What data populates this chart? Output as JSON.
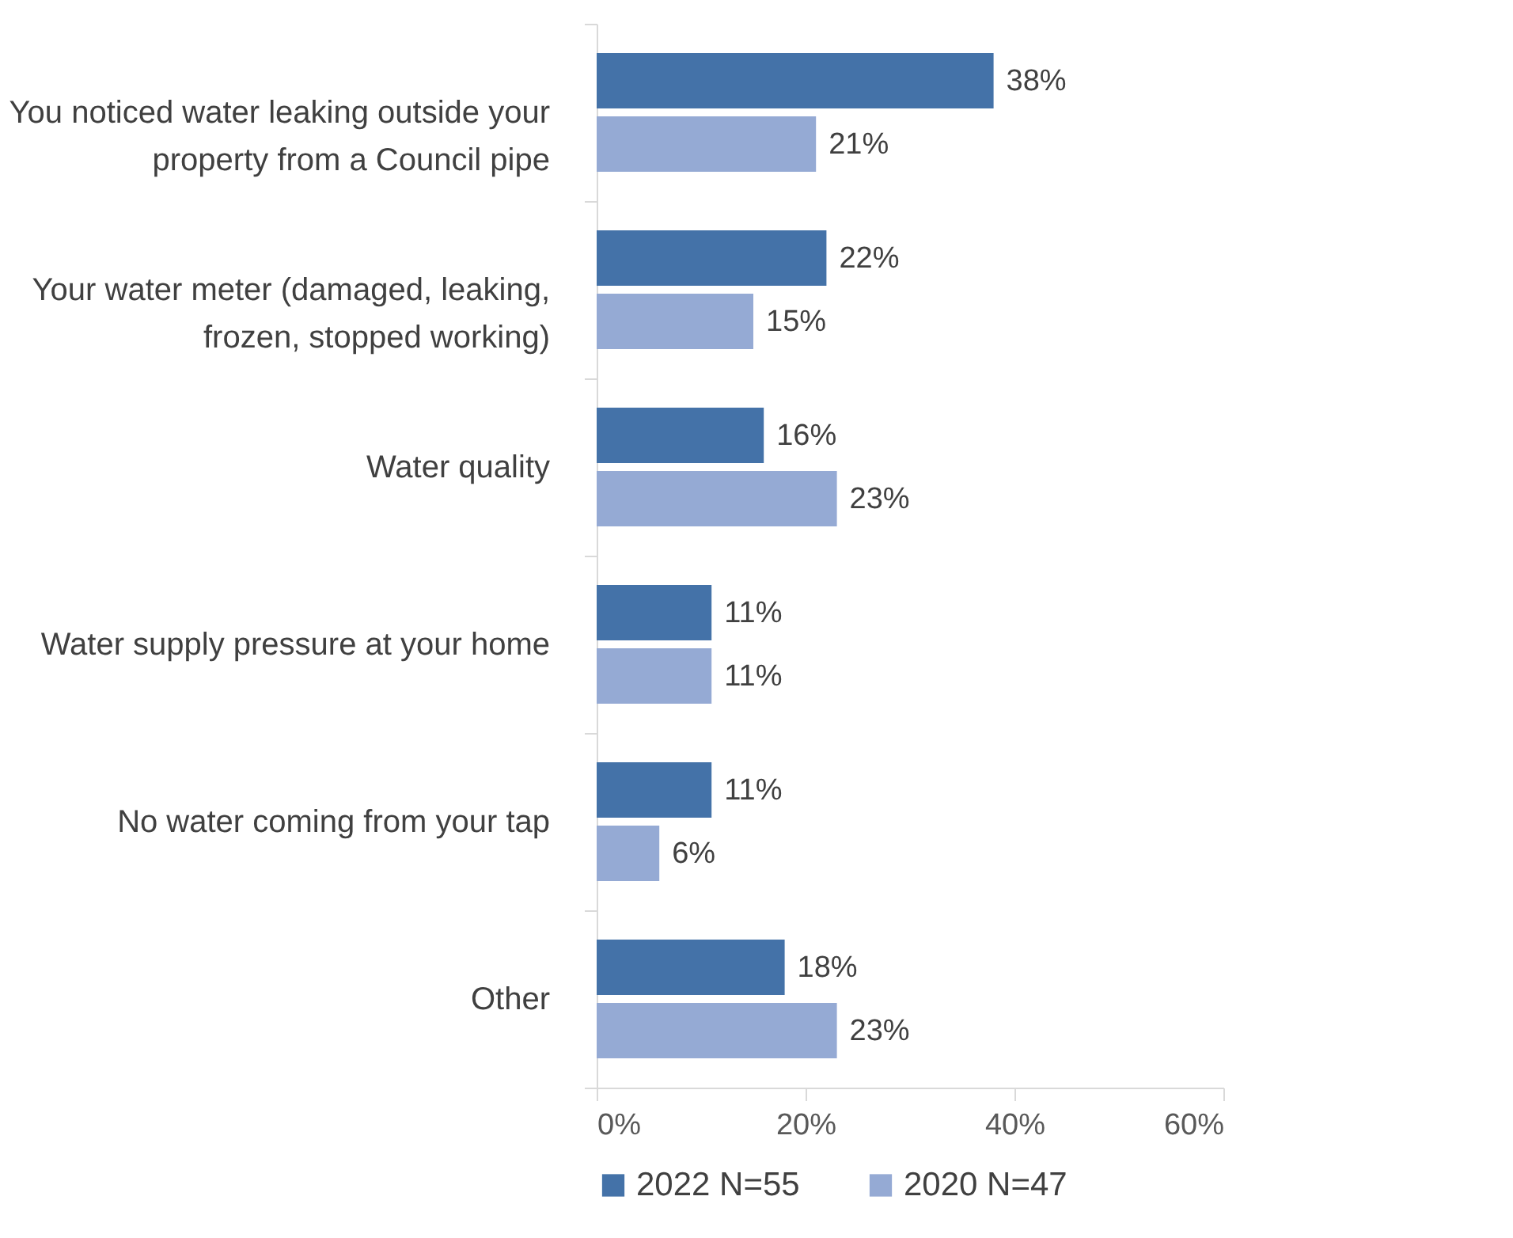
{
  "chart_data": {
    "type": "bar",
    "orientation": "horizontal",
    "categories": [
      "You noticed water leaking outside your property from a Council pipe",
      "Your water meter (damaged, leaking, frozen, stopped working)",
      "Water quality",
      "Water supply pressure at your home",
      "No water coming from your tap",
      "Other"
    ],
    "series": [
      {
        "name": "2022 N=55",
        "color": "#4472a8",
        "values": [
          38,
          22,
          16,
          11,
          11,
          18
        ],
        "value_labels": [
          "38%",
          "22%",
          "16%",
          "11%",
          "11%",
          "18%"
        ]
      },
      {
        "name": "2020 N=47",
        "color": "#95aad4",
        "values": [
          21,
          15,
          23,
          11,
          6,
          23
        ],
        "value_labels": [
          "21%",
          "15%",
          "23%",
          "11%",
          "6%",
          "23%"
        ]
      }
    ],
    "xlim": [
      0,
      60
    ],
    "xticks": [
      {
        "value": 0,
        "label": "0%"
      },
      {
        "value": 20,
        "label": "20%"
      },
      {
        "value": 40,
        "label": "40%"
      },
      {
        "value": 60,
        "label": "60%"
      }
    ],
    "grid": false,
    "legend": "bottom"
  }
}
